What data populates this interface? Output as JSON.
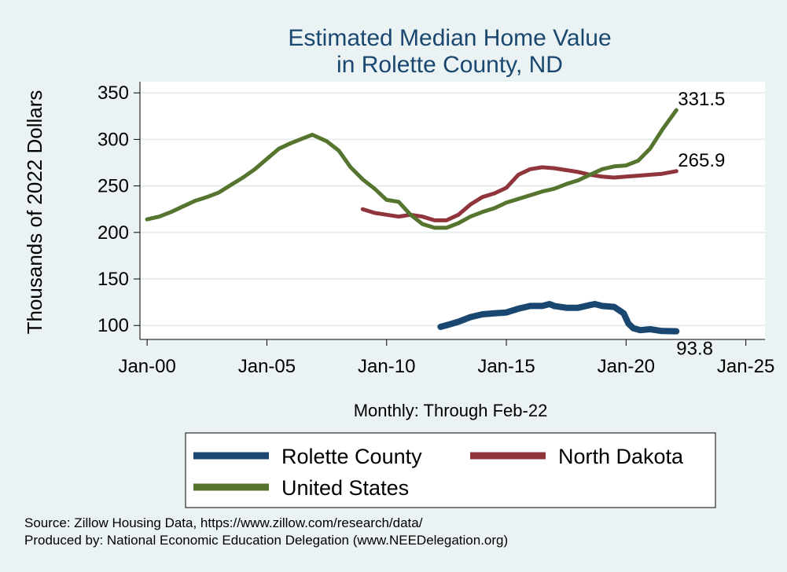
{
  "chart_data": {
    "type": "line",
    "title": [
      "Estimated Median Home Value",
      "in Rolette County, ND"
    ],
    "ylabel": "Thousands of 2022 Dollars",
    "xlabel": "Monthly: Through Feb-22",
    "ylim": [
      85,
      362
    ],
    "yticks": [
      100,
      150,
      200,
      250,
      300,
      350
    ],
    "xlim": [
      -0.3,
      25.8
    ],
    "xticks": [
      0,
      5,
      10,
      15,
      20,
      25
    ],
    "xtick_labels": [
      "Jan-00",
      "Jan-05",
      "Jan-10",
      "Jan-15",
      "Jan-20",
      "Jan-25"
    ],
    "grid": true,
    "legend_position": "bottom",
    "series": [
      {
        "name": "Rolette County",
        "color": "#1a476f",
        "end_label": "93.8",
        "x": [
          12.25,
          12.6,
          13.0,
          13.5,
          14.0,
          14.5,
          15.0,
          15.5,
          16.0,
          16.5,
          16.8,
          17.0,
          17.5,
          18.0,
          18.5,
          18.7,
          19.0,
          19.5,
          19.9,
          20.1,
          20.3,
          20.6,
          21.0,
          21.5,
          22.1
        ],
        "y": [
          98.5,
          101,
          104,
          109,
          112,
          113,
          114,
          118,
          121,
          121,
          123,
          121,
          119,
          119,
          122,
          123,
          121,
          120,
          113,
          102,
          97,
          95,
          96,
          94,
          93.8
        ]
      },
      {
        "name": "North Dakota",
        "color": "#90353b",
        "end_label": "265.9",
        "x": [
          9.0,
          9.5,
          10.0,
          10.5,
          11.0,
          11.5,
          12.0,
          12.5,
          13.0,
          13.5,
          14.0,
          14.5,
          15.0,
          15.5,
          16.0,
          16.5,
          17.0,
          17.5,
          18.0,
          18.5,
          19.0,
          19.5,
          20.0,
          20.5,
          21.0,
          21.5,
          22.1
        ],
        "y": [
          225,
          221,
          219,
          217,
          219,
          217,
          213,
          213,
          219,
          230,
          238,
          242,
          248,
          262,
          268,
          270,
          269,
          267,
          265,
          262,
          260,
          259,
          260,
          261,
          262,
          263,
          265.9
        ]
      },
      {
        "name": "United States",
        "color": "#55752f",
        "end_label": "331.5",
        "x": [
          0.0,
          0.5,
          1.0,
          1.5,
          2.0,
          2.5,
          3.0,
          3.5,
          4.0,
          4.5,
          5.0,
          5.5,
          6.0,
          6.5,
          6.9,
          7.5,
          8.0,
          8.5,
          9.0,
          9.5,
          10.0,
          10.5,
          11.0,
          11.5,
          12.0,
          12.5,
          13.0,
          13.5,
          14.0,
          14.5,
          15.0,
          15.5,
          16.0,
          16.5,
          17.0,
          17.5,
          18.0,
          18.5,
          19.0,
          19.5,
          20.0,
          20.5,
          21.0,
          21.5,
          22.1
        ],
        "y": [
          214,
          217,
          222,
          228,
          234,
          238,
          243,
          251,
          259,
          268,
          279,
          290,
          296,
          301,
          305,
          298,
          288,
          270,
          257,
          247,
          235,
          233,
          219,
          209,
          205,
          205,
          210,
          217,
          222,
          226,
          232,
          236,
          240,
          244,
          247,
          252,
          256,
          262,
          268,
          271,
          272,
          277,
          290,
          310,
          331.5
        ]
      }
    ]
  },
  "footer": {
    "source": "Source: Zillow Housing Data, https://www.zillow.com/research/data/",
    "producer": "Produced by: National Economic Education Delegation (www.NEEDelegation.org)"
  }
}
